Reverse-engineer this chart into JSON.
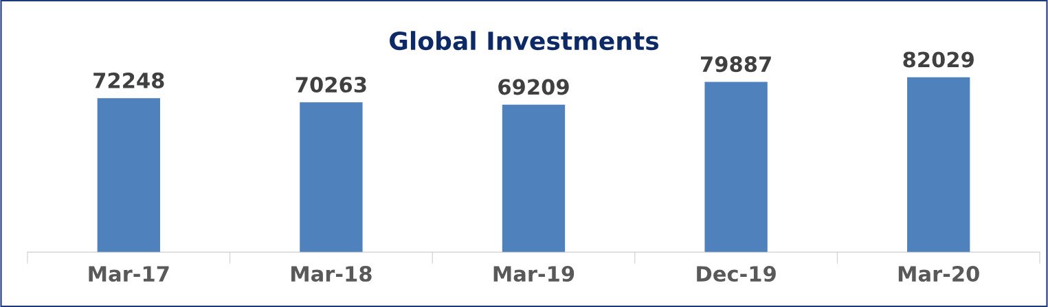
{
  "chart_data": {
    "type": "bar",
    "title": "Global Investments",
    "categories": [
      "Mar-17",
      "Mar-18",
      "Mar-19",
      "Dec-19",
      "Mar-20"
    ],
    "values": [
      72248,
      70263,
      69209,
      79887,
      82029
    ],
    "color": "#4f81bd",
    "data_labels": true,
    "tick_labels": "x",
    "grid": false,
    "legend": false
  }
}
